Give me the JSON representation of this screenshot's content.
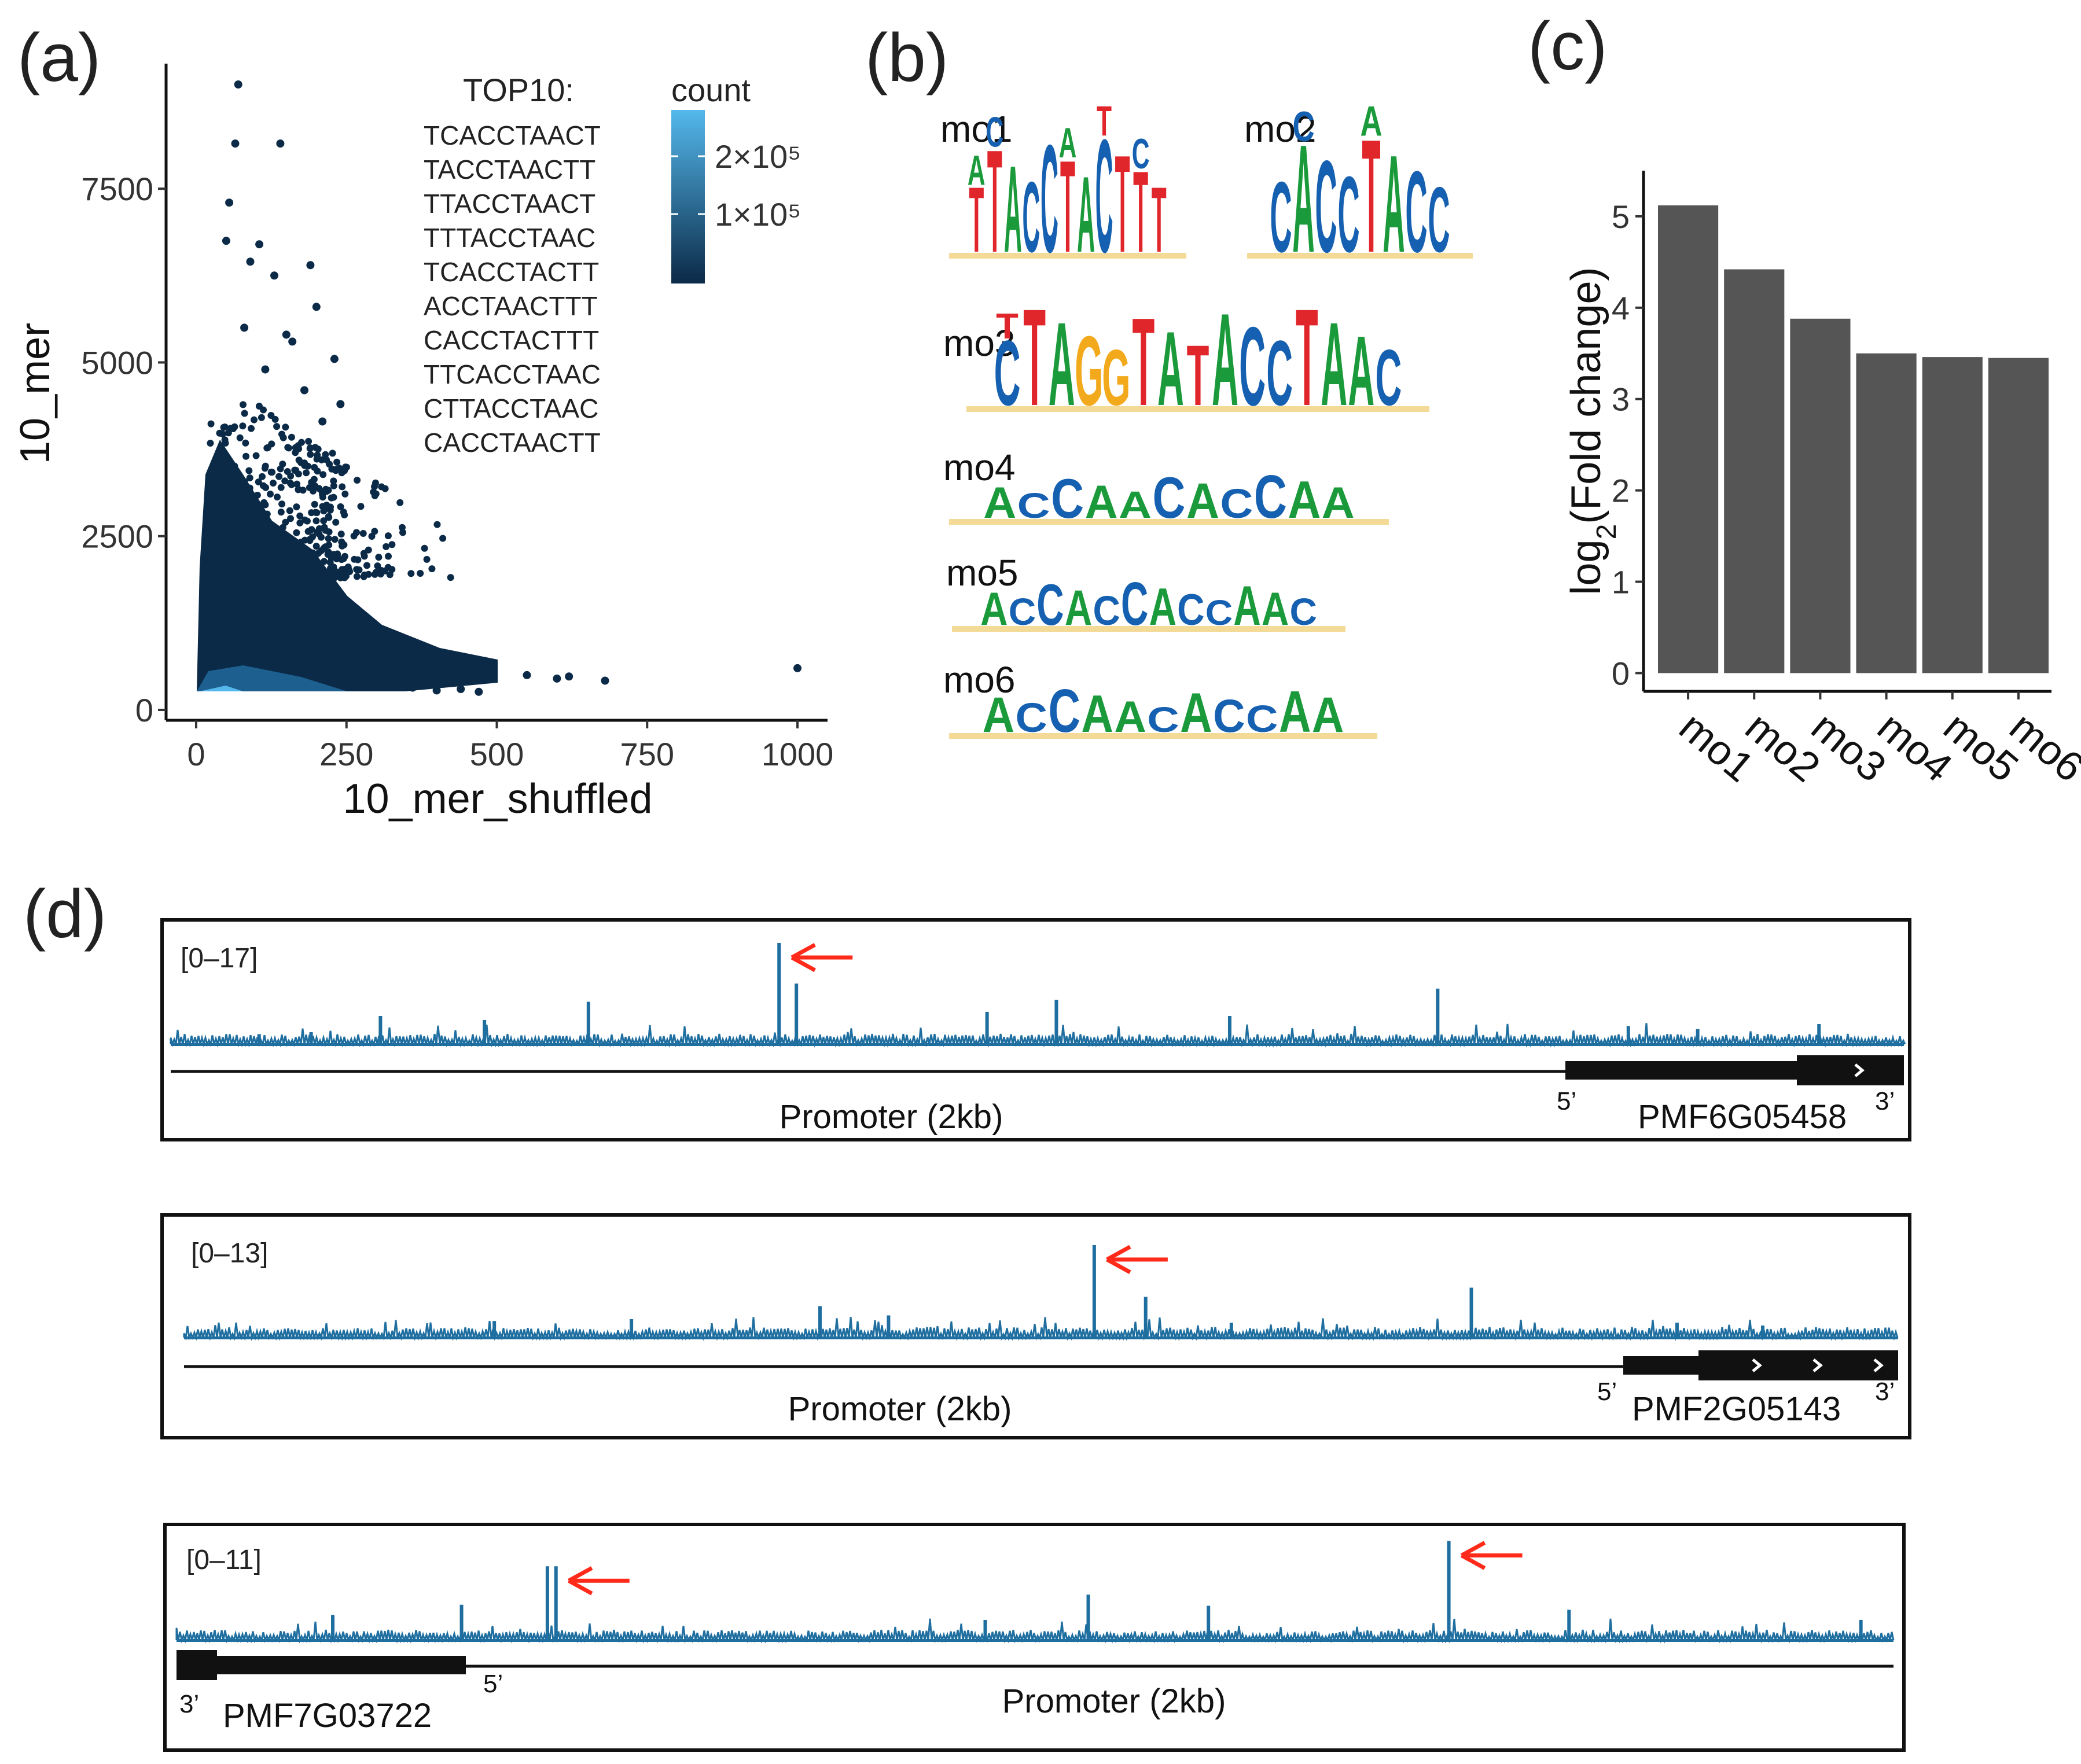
{
  "panel_labels": [
    "(a)",
    "(b)",
    "(c)",
    "(d)"
  ],
  "colors": {
    "bar": "#555555",
    "track": "#1f6ea0",
    "arrow": "#ff2a1a",
    "dots": "#0b2a47",
    "A": "#1a9a3a",
    "C": "#1560b0",
    "G": "#f2a91c",
    "T": "#e0262a"
  },
  "chart_data": [
    {
      "type": "scatter",
      "panel": "(a)",
      "xlabel": "10_mer_shuffled",
      "ylabel": "10_mer",
      "xlim": [
        -50,
        1050
      ],
      "ylim": [
        -150,
        9300
      ],
      "xticks": [
        0,
        250,
        500,
        750,
        1000
      ],
      "yticks": [
        0,
        2500,
        5000,
        7500
      ],
      "legend": {
        "title": "count",
        "labels": [
          "2×10⁵",
          "1×10⁵"
        ],
        "gradient": [
          "#54b8ec",
          "#0b2a47"
        ]
      },
      "top10_title": "TOP10:",
      "top10": [
        "TCACCTAACT",
        "TACCTAACTT",
        "TTACCTAACT",
        "TTTACCTAAC",
        "TCACCTACTT",
        "ACCTAACTTT",
        "CACCTACTTT",
        "TTCACCTAAC",
        "CTTACCTAAC",
        "CACCTAACTT"
      ],
      "highlight_points": [
        [
          70,
          9000
        ],
        [
          65,
          8150
        ],
        [
          140,
          8150
        ],
        [
          55,
          7300
        ],
        [
          90,
          6450
        ],
        [
          50,
          6750
        ],
        [
          105,
          6700
        ],
        [
          130,
          6250
        ],
        [
          190,
          6400
        ],
        [
          200,
          5800
        ],
        [
          80,
          5500
        ],
        [
          150,
          5400
        ],
        [
          160,
          5300
        ],
        [
          230,
          5050
        ],
        [
          115,
          4900
        ],
        [
          180,
          4600
        ],
        [
          240,
          4400
        ],
        [
          210,
          4150
        ],
        [
          600,
          450
        ],
        [
          680,
          420
        ],
        [
          620,
          480
        ],
        [
          550,
          500
        ],
        [
          1000,
          600
        ],
        [
          440,
          300
        ],
        [
          470,
          260
        ],
        [
          400,
          280
        ],
        [
          360,
          320
        ]
      ]
    },
    {
      "type": "bar",
      "panel": "(c)",
      "categories": [
        "mo1",
        "mo2",
        "mo3",
        "mo4",
        "mo5",
        "mo6"
      ],
      "values": [
        5.12,
        4.42,
        3.88,
        3.5,
        3.46,
        3.45
      ],
      "ylabel": "log₂(Fold change)",
      "ylabel_main": "log",
      "ylabel_sub": "2",
      "ylabel_rest": "(Fold change)",
      "xlabel": "",
      "ylim": [
        -0.2,
        5.5
      ],
      "yticks": [
        0,
        1,
        2,
        3,
        4,
        5
      ]
    }
  ],
  "motifs": [
    {
      "label": "mo1",
      "letters": [
        [
          "T",
          "A"
        ],
        [
          "T",
          "C"
        ],
        [
          "A"
        ],
        [
          "C"
        ],
        [
          "C"
        ],
        [
          "T",
          "A"
        ],
        [
          "A"
        ],
        [
          "C",
          "T"
        ],
        [
          "T"
        ],
        [
          "T",
          "C"
        ],
        [
          "T"
        ]
      ]
    },
    {
      "label": "mo2",
      "letters": [
        [
          "C"
        ],
        [
          "A",
          "C"
        ],
        [
          "C"
        ],
        [
          "C"
        ],
        [
          "T",
          "A"
        ],
        [
          "A"
        ],
        [
          "C"
        ],
        [
          "C"
        ]
      ]
    },
    {
      "label": "mo3",
      "letters": [
        [
          "C",
          "T"
        ],
        [
          "T"
        ],
        [
          "A"
        ],
        [
          "G"
        ],
        [
          "G"
        ],
        [
          "T"
        ],
        [
          "A"
        ],
        [
          "T"
        ],
        [
          "A"
        ],
        [
          "C"
        ],
        [
          "C"
        ],
        [
          "T"
        ],
        [
          "A"
        ],
        [
          "A"
        ],
        [
          "C"
        ]
      ]
    },
    {
      "label": "mo4",
      "letters": [
        [
          "A"
        ],
        [
          "C"
        ],
        [
          "C"
        ],
        [
          "A"
        ],
        [
          "A"
        ],
        [
          "C"
        ],
        [
          "A"
        ],
        [
          "C"
        ],
        [
          "C"
        ],
        [
          "A"
        ],
        [
          "A"
        ]
      ]
    },
    {
      "label": "mo5",
      "letters": [
        [
          "A"
        ],
        [
          "C"
        ],
        [
          "C"
        ],
        [
          "A"
        ],
        [
          "C"
        ],
        [
          "C"
        ],
        [
          "A"
        ],
        [
          "C"
        ],
        [
          "C"
        ],
        [
          "A"
        ],
        [
          "A"
        ],
        [
          "C"
        ]
      ]
    },
    {
      "label": "mo6",
      "letters": [
        [
          "A"
        ],
        [
          "C"
        ],
        [
          "C"
        ],
        [
          "A"
        ],
        [
          "A"
        ],
        [
          "C"
        ],
        [
          "A"
        ],
        [
          "C"
        ],
        [
          "C"
        ],
        [
          "A"
        ],
        [
          "A"
        ]
      ]
    }
  ],
  "tracks": [
    {
      "range": "[0–17]",
      "gene": "PMF6G05458",
      "promoter": "Promoter (2kb)",
      "five": "5’",
      "three": "3’",
      "orientation": "forward",
      "peaks": [
        [
          0.35,
          1.0
        ],
        [
          0.18,
          0.24
        ],
        [
          0.73,
          0.55
        ],
        [
          0.36,
          0.6
        ],
        [
          0.12,
          0.28
        ],
        [
          0.24,
          0.42
        ],
        [
          0.51,
          0.44
        ],
        [
          0.47,
          0.32
        ],
        [
          0.05,
          0.1
        ],
        [
          0.61,
          0.28
        ],
        [
          0.88,
          0.15
        ],
        [
          0.95,
          0.2
        ],
        [
          0.08,
          0.12
        ],
        [
          0.84,
          0.18
        ]
      ]
    },
    {
      "range": "[0–13]",
      "gene": "PMF2G05143",
      "promoter": "Promoter (2kb)",
      "five": "5’",
      "three": "3’",
      "orientation": "forward",
      "peaks": [
        [
          0.53,
          1.0
        ],
        [
          0.75,
          0.54
        ],
        [
          0.56,
          0.44
        ],
        [
          0.37,
          0.34
        ],
        [
          0.41,
          0.24
        ],
        [
          0.18,
          0.18
        ],
        [
          0.26,
          0.2
        ],
        [
          0.61,
          0.16
        ],
        [
          0.87,
          0.16
        ],
        [
          0.92,
          0.13
        ]
      ]
    },
    {
      "range": "[0–11]",
      "gene": "PMF7G03722",
      "promoter": "Promoter (2kb)",
      "five": "5’",
      "three": "3’",
      "orientation": "reverse",
      "peaks": [
        [
          0.22,
          0.73
        ],
        [
          0.215,
          0.73
        ],
        [
          0.74,
          0.98
        ],
        [
          0.53,
          0.45
        ],
        [
          0.165,
          0.35
        ],
        [
          0.6,
          0.34
        ],
        [
          0.09,
          0.25
        ],
        [
          0.47,
          0.2
        ],
        [
          0.81,
          0.3
        ],
        [
          0.98,
          0.2
        ]
      ]
    }
  ]
}
